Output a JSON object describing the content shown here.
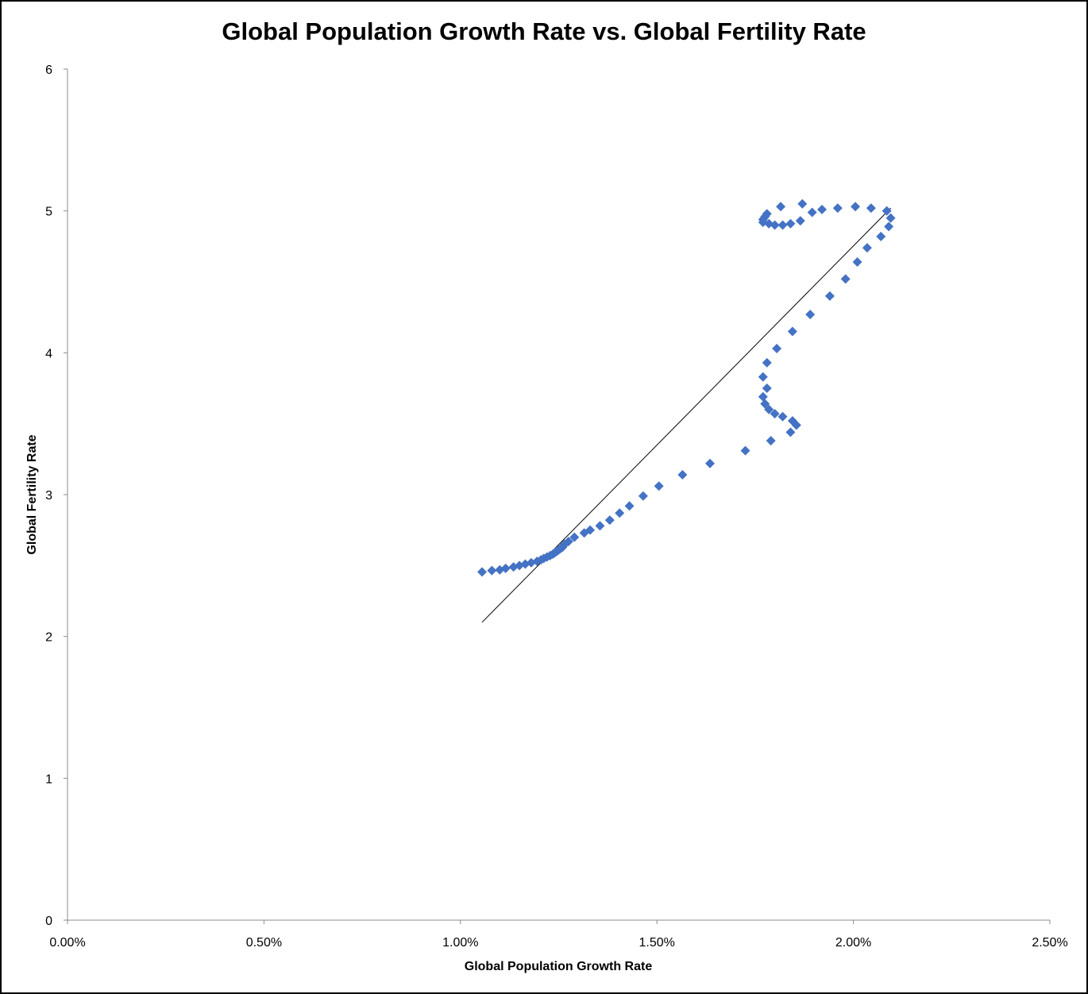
{
  "chart_data": {
    "type": "scatter",
    "title": "Global Population Growth Rate vs. Global Fertility Rate",
    "xlabel": "Global Population Growth Rate",
    "ylabel": "Global Fertility Rate",
    "xlim": [
      0,
      0.025
    ],
    "ylim": [
      0,
      6
    ],
    "x_ticks": [
      0,
      0.005,
      0.01,
      0.015,
      0.02,
      0.025
    ],
    "x_tick_labels": [
      "0.00%",
      "0.50%",
      "1.00%",
      "1.50%",
      "2.00%",
      "2.50%"
    ],
    "y_ticks": [
      0,
      1,
      2,
      3,
      4,
      5,
      6
    ],
    "y_tick_labels": [
      "0",
      "1",
      "2",
      "3",
      "4",
      "5",
      "6"
    ],
    "grid": false,
    "legend": "none",
    "marker": "diamond",
    "marker_color": "#4472C4",
    "trendline_color": "#000000",
    "trendline": {
      "x": [
        0.01055,
        0.02095
      ],
      "y": [
        2.1,
        5.02
      ]
    },
    "series": [
      {
        "x": [
          0.0177,
          0.01775,
          0.0178,
          0.0177,
          0.01785,
          0.018,
          0.0182,
          0.0184,
          0.01865,
          0.01815,
          0.0187,
          0.01895,
          0.0192,
          0.0196,
          0.02005,
          0.02045,
          0.02085,
          0.02095,
          0.0209,
          0.0207,
          0.02035,
          0.0201,
          0.0198,
          0.0194,
          0.0189,
          0.01845,
          0.01805,
          0.0178,
          0.0177,
          0.0178,
          0.0177,
          0.01775,
          0.01785,
          0.018,
          0.0182,
          0.01845,
          0.01855,
          0.0184,
          0.0179,
          0.01725,
          0.01635,
          0.01565,
          0.01505,
          0.01465,
          0.0143,
          0.01405,
          0.0138,
          0.01355,
          0.0133,
          0.01315,
          0.0129,
          0.01275,
          0.01265,
          0.0126,
          0.01255,
          0.0125,
          0.01245,
          0.0124,
          0.01235,
          0.01228,
          0.0122,
          0.01212,
          0.01205,
          0.01195,
          0.0118,
          0.01165,
          0.0115,
          0.01135,
          0.01115,
          0.011,
          0.0108,
          0.01055
        ],
        "y": [
          4.94,
          4.96,
          4.98,
          4.92,
          4.91,
          4.9,
          4.9,
          4.91,
          4.93,
          5.03,
          5.05,
          4.99,
          5.01,
          5.02,
          5.03,
          5.02,
          5.0,
          4.95,
          4.89,
          4.82,
          4.74,
          4.64,
          4.52,
          4.4,
          4.27,
          4.15,
          4.03,
          3.93,
          3.83,
          3.75,
          3.69,
          3.64,
          3.6,
          3.57,
          3.55,
          3.52,
          3.49,
          3.44,
          3.38,
          3.31,
          3.22,
          3.14,
          3.06,
          2.99,
          2.92,
          2.87,
          2.82,
          2.78,
          2.75,
          2.73,
          2.7,
          2.67,
          2.65,
          2.63,
          2.62,
          2.61,
          2.6,
          2.59,
          2.58,
          2.57,
          2.56,
          2.55,
          2.54,
          2.53,
          2.52,
          2.51,
          2.5,
          2.49,
          2.48,
          2.47,
          2.465,
          2.455
        ]
      }
    ]
  }
}
